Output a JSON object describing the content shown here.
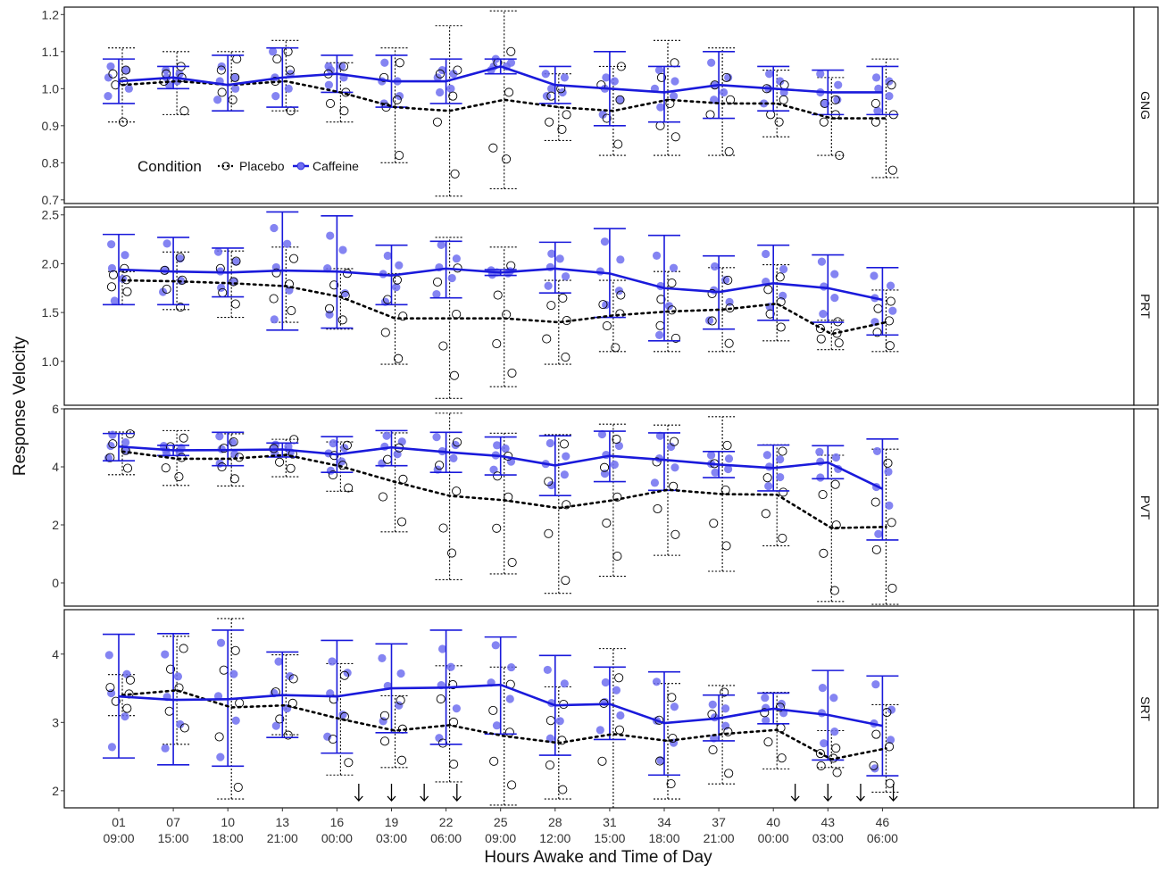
{
  "chart_data": {
    "type": "line",
    "facet_layout": "vertical panels, strip labels on right",
    "xlabel": "Hours Awake and Time of Day",
    "ylabel": "Response Velocity",
    "x_ticks": [
      {
        "line1": "01",
        "line2": "09:00"
      },
      {
        "line1": "07",
        "line2": "15:00"
      },
      {
        "line1": "10",
        "line2": "18:00"
      },
      {
        "line1": "13",
        "line2": "21:00"
      },
      {
        "line1": "16",
        "line2": "00:00"
      },
      {
        "line1": "19",
        "line2": "03:00"
      },
      {
        "line1": "22",
        "line2": "06:00"
      },
      {
        "line1": "25",
        "line2": "09:00"
      },
      {
        "line1": "28",
        "line2": "12:00"
      },
      {
        "line1": "31",
        "line2": "15:00"
      },
      {
        "line1": "34",
        "line2": "18:00"
      },
      {
        "line1": "37",
        "line2": "21:00"
      },
      {
        "line1": "40",
        "line2": "00:00"
      },
      {
        "line1": "43",
        "line2": "03:00"
      },
      {
        "line1": "46",
        "line2": "06:00"
      }
    ],
    "legend": {
      "title": "Condition",
      "placement": "inside top panel, bottom-left",
      "entries": [
        {
          "name": "Placebo",
          "color": "#000000",
          "line": "dotted",
          "marker": "open circle"
        },
        {
          "name": "Caffeine",
          "color": "#1a1adb",
          "line": "solid",
          "marker": "filled circle"
        }
      ]
    },
    "colors": {
      "caffeine": "#1a1adb",
      "caffeine_points": "#6e6ef0",
      "placebo": "#000000"
    },
    "dose_arrows_x_index": [
      4.4,
      5.0,
      5.6,
      6.2,
      12.4,
      13.0,
      13.6,
      14.2
    ],
    "panels": [
      {
        "label": "GNG",
        "ylim": [
          0.69,
          1.22
        ],
        "yticks": [
          0.7,
          0.8,
          0.9,
          1.0,
          1.1,
          1.2
        ],
        "ytick_labels": [
          "0.7",
          "0.8",
          "0.9",
          "1.0",
          "1.1",
          "1.2"
        ],
        "series": [
          {
            "name": "Placebo",
            "values": [
              1.01,
              1.02,
              1.01,
              1.02,
              0.99,
              0.95,
              0.94,
              0.97,
              0.95,
              0.94,
              0.97,
              0.96,
              0.96,
              0.92,
              0.92
            ],
            "err_low": [
              0.91,
              0.93,
              0.94,
              0.94,
              0.91,
              0.8,
              0.71,
              0.73,
              0.86,
              0.82,
              0.82,
              0.82,
              0.87,
              0.82,
              0.76
            ],
            "err_high": [
              1.11,
              1.1,
              1.1,
              1.13,
              1.07,
              1.11,
              1.17,
              1.21,
              1.04,
              1.06,
              1.13,
              1.11,
              1.05,
              1.03,
              1.08
            ],
            "points": [
              [
                0.91,
                1.01,
                1.02,
                1.04,
                1.05
              ],
              [
                0.94,
                1.02,
                1.03,
                1.04,
                1.06
              ],
              [
                0.97,
                0.99,
                1.03,
                1.05,
                1.08
              ],
              [
                0.94,
                1.02,
                1.05,
                1.08,
                1.1
              ],
              [
                0.94,
                0.96,
                0.99,
                1.04,
                1.06
              ],
              [
                0.82,
                0.95,
                0.97,
                1.03,
                1.07
              ],
              [
                0.77,
                0.91,
                0.98,
                1.04,
                1.05
              ],
              [
                0.81,
                0.84,
                0.99,
                1.07,
                1.1
              ],
              [
                0.89,
                0.91,
                0.93,
                0.98,
                1.0
              ],
              [
                0.85,
                0.92,
                0.97,
                1.01,
                1.06
              ],
              [
                0.87,
                0.9,
                0.96,
                1.03,
                1.07
              ],
              [
                0.83,
                0.93,
                0.97,
                1.01,
                1.03
              ],
              [
                0.91,
                0.93,
                0.97,
                1.0,
                1.01
              ],
              [
                0.82,
                0.91,
                0.93,
                0.96,
                0.97
              ],
              [
                0.78,
                0.91,
                0.93,
                0.96,
                1.01
              ]
            ]
          },
          {
            "name": "Caffeine",
            "values": [
              1.02,
              1.03,
              1.01,
              1.03,
              1.04,
              1.02,
              1.02,
              1.06,
              1.01,
              1.0,
              0.99,
              1.01,
              1.0,
              0.99,
              0.99
            ],
            "err_low": [
              0.96,
              1.0,
              0.94,
              0.95,
              0.99,
              0.95,
              0.96,
              1.04,
              0.96,
              0.9,
              0.91,
              0.92,
              0.94,
              0.93,
              0.93
            ],
            "err_high": [
              1.08,
              1.06,
              1.09,
              1.11,
              1.09,
              1.09,
              1.08,
              1.08,
              1.06,
              1.1,
              1.06,
              1.1,
              1.06,
              1.05,
              1.06
            ],
            "points": [
              [
                0.98,
                1.0,
                1.03,
                1.05,
                1.06
              ],
              [
                1.01,
                1.02,
                1.03,
                1.04,
                1.05
              ],
              [
                0.97,
                1.0,
                1.02,
                1.03,
                1.06
              ],
              [
                0.98,
                1.0,
                1.03,
                1.04,
                1.1
              ],
              [
                1.01,
                1.03,
                1.05,
                1.06,
                1.06
              ],
              [
                0.96,
                0.98,
                1.02,
                1.02,
                1.07
              ],
              [
                0.99,
                1.0,
                1.03,
                1.04,
                1.05
              ],
              [
                1.05,
                1.06,
                1.06,
                1.07,
                1.08
              ],
              [
                0.98,
                0.99,
                1.0,
                1.03,
                1.04
              ],
              [
                0.93,
                0.97,
                1.0,
                1.02,
                1.03
              ],
              [
                0.95,
                0.98,
                1.0,
                1.02,
                1.05
              ],
              [
                0.97,
                0.99,
                1.01,
                1.03,
                1.07
              ],
              [
                0.96,
                0.99,
                1.0,
                1.02,
                1.04
              ],
              [
                0.96,
                0.97,
                0.99,
                1.01,
                1.04
              ],
              [
                0.94,
                0.98,
                1.0,
                1.02,
                1.03
              ]
            ]
          }
        ]
      },
      {
        "label": "PRT",
        "ylim": [
          0.55,
          2.58
        ],
        "yticks": [
          1.0,
          1.5,
          2.0,
          2.5
        ],
        "ytick_labels": [
          "1.0",
          "1.5",
          "2.0",
          "2.5"
        ],
        "series": [
          {
            "name": "Placebo",
            "values": [
              1.83,
              1.82,
              1.8,
              1.77,
              1.66,
              1.44,
              1.44,
              1.44,
              1.4,
              1.47,
              1.51,
              1.53,
              1.59,
              1.28,
              1.4
            ],
            "err_low": [
              1.58,
              1.53,
              1.45,
              1.4,
              1.33,
              0.97,
              0.62,
              0.74,
              0.97,
              1.1,
              1.1,
              1.1,
              1.21,
              1.12,
              1.1
            ],
            "err_high": [
              1.92,
              2.12,
              2.13,
              2.17,
              1.95,
              1.9,
              2.27,
              2.17,
              1.83,
              1.83,
              1.92,
              1.96,
              1.99,
              1.42,
              1.73
            ]
          },
          {
            "name": "Caffeine",
            "values": [
              1.94,
              1.92,
              1.91,
              1.93,
              1.92,
              1.88,
              1.95,
              1.91,
              1.95,
              1.9,
              1.75,
              1.71,
              1.8,
              1.75,
              1.63
            ],
            "err_low": [
              1.58,
              1.58,
              1.66,
              1.32,
              1.34,
              1.58,
              1.65,
              1.88,
              1.7,
              1.45,
              1.21,
              1.33,
              1.42,
              1.4,
              1.27
            ],
            "err_high": [
              2.3,
              2.27,
              2.16,
              2.53,
              2.49,
              2.19,
              2.23,
              1.94,
              2.22,
              2.36,
              2.29,
              2.08,
              2.19,
              2.09,
              1.96
            ]
          }
        ]
      },
      {
        "label": "PVT",
        "ylim": [
          -0.8,
          6.0
        ],
        "yticks": [
          0,
          2,
          4,
          6
        ],
        "ytick_labels": [
          "0",
          "2",
          "4",
          "6"
        ],
        "series": [
          {
            "name": "Placebo",
            "values": [
              4.53,
              4.28,
              4.28,
              4.41,
              4.02,
              3.48,
              3.0,
              2.85,
              2.58,
              2.85,
              3.21,
              3.06,
              3.04,
              1.89,
              1.93
            ],
            "err_low": [
              3.73,
              3.36,
              3.34,
              3.66,
              3.16,
              1.76,
              0.11,
              0.31,
              -0.36,
              0.23,
              0.95,
              0.4,
              1.28,
              -0.64,
              -0.74
            ],
            "err_high": [
              5.2,
              5.25,
              5.14,
              4.95,
              4.86,
              5.17,
              5.85,
              5.16,
              5.11,
              5.47,
              5.44,
              5.73,
              4.76,
              4.4,
              4.61
            ]
          },
          {
            "name": "Caffeine",
            "values": [
              4.7,
              4.57,
              4.58,
              4.6,
              4.43,
              4.67,
              4.51,
              4.37,
              4.05,
              4.38,
              4.24,
              4.08,
              3.96,
              4.15,
              3.24
            ],
            "err_low": [
              4.21,
              4.39,
              4.04,
              4.34,
              3.81,
              4.04,
              3.81,
              3.72,
              3.01,
              3.49,
              3.19,
              3.63,
              3.17,
              3.59,
              1.48
            ],
            "err_high": [
              5.15,
              4.74,
              5.19,
              4.82,
              5.04,
              5.25,
              5.19,
              5.03,
              5.07,
              5.23,
              5.17,
              4.53,
              4.75,
              4.73,
              4.96
            ]
          }
        ]
      },
      {
        "label": "SRT",
        "ylim": [
          1.75,
          4.65
        ],
        "yticks": [
          2,
          3,
          4
        ],
        "ytick_labels": [
          "2",
          "3",
          "4"
        ],
        "series": [
          {
            "name": "Placebo",
            "values": [
              3.4,
              3.47,
              3.22,
              3.25,
              3.05,
              2.88,
              2.96,
              2.8,
              2.7,
              2.83,
              2.73,
              2.83,
              2.89,
              2.46,
              2.62
            ],
            "err_low": [
              3.1,
              2.68,
              1.88,
              2.82,
              2.23,
              2.34,
              2.13,
              1.79,
              1.88,
              1.63,
              1.88,
              2.1,
              2.32,
              2.34,
              1.98
            ],
            "err_high": [
              3.7,
              4.26,
              4.52,
              3.99,
              3.86,
              3.39,
              3.83,
              3.81,
              3.52,
              4.08,
              3.57,
              3.54,
              3.44,
              2.88,
              3.26
            ]
          },
          {
            "name": "Caffeine",
            "values": [
              3.38,
              3.33,
              3.34,
              3.4,
              3.38,
              3.5,
              3.51,
              3.55,
              3.25,
              3.27,
              2.99,
              3.06,
              3.2,
              3.11,
              2.95
            ],
            "err_low": [
              2.48,
              2.38,
              2.36,
              2.78,
              2.55,
              2.85,
              2.68,
              2.83,
              2.52,
              2.75,
              2.23,
              2.73,
              2.98,
              2.45,
              2.22
            ],
            "err_high": [
              4.29,
              4.3,
              4.35,
              4.03,
              4.2,
              4.15,
              4.35,
              4.25,
              3.98,
              3.81,
              3.74,
              3.4,
              3.43,
              3.76,
              3.68
            ]
          }
        ]
      }
    ]
  }
}
